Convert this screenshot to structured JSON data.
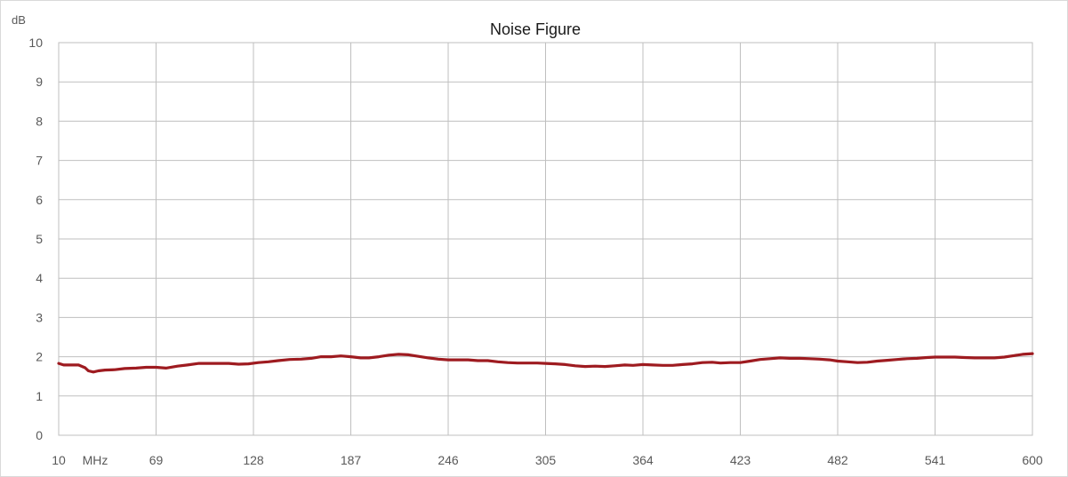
{
  "chart_data": {
    "type": "line",
    "title": "Noise Figure",
    "ylabel": "dB",
    "xlabel": "MHz",
    "xlim": [
      10,
      600
    ],
    "ylim": [
      0,
      10
    ],
    "x_ticks": [
      10,
      69,
      128,
      187,
      246,
      305,
      364,
      423,
      482,
      541,
      600
    ],
    "x_tick_labels": [
      "10",
      "69",
      "128",
      "187",
      "246",
      "305",
      "364",
      "423",
      "482",
      "541",
      "600"
    ],
    "y_ticks": [
      0,
      1,
      2,
      3,
      4,
      5,
      6,
      7,
      8,
      9,
      10
    ],
    "y_tick_labels": [
      "0",
      "1",
      "2",
      "3",
      "4",
      "5",
      "6",
      "7",
      "8",
      "9",
      "10"
    ],
    "grid": true,
    "legend": "none",
    "series": [
      {
        "color": "#9e1b20",
        "x": [
          10,
          13,
          17,
          22,
          26,
          28,
          31,
          34,
          38,
          44,
          50,
          57,
          63,
          69,
          75,
          82,
          88,
          95,
          100,
          107,
          113,
          119,
          125,
          131,
          137,
          143,
          150,
          157,
          163,
          169,
          175,
          181,
          187,
          193,
          198,
          204,
          210,
          216,
          222,
          228,
          234,
          240,
          246,
          252,
          258,
          264,
          270,
          276,
          282,
          288,
          294,
          300,
          305,
          311,
          317,
          323,
          329,
          335,
          341,
          347,
          353,
          358,
          364,
          370,
          376,
          382,
          388,
          394,
          400,
          406,
          411,
          417,
          423,
          429,
          435,
          441,
          447,
          453,
          459,
          465,
          471,
          477,
          482,
          488,
          494,
          500,
          506,
          512,
          518,
          524,
          530,
          536,
          541,
          547,
          553,
          559,
          565,
          571,
          577,
          583,
          589,
          594,
          600
        ],
        "y": [
          1.83,
          1.79,
          1.79,
          1.79,
          1.72,
          1.64,
          1.61,
          1.64,
          1.66,
          1.67,
          1.7,
          1.71,
          1.73,
          1.73,
          1.71,
          1.76,
          1.79,
          1.83,
          1.83,
          1.83,
          1.83,
          1.81,
          1.82,
          1.85,
          1.87,
          1.9,
          1.93,
          1.94,
          1.96,
          2.0,
          2.0,
          2.02,
          2.0,
          1.97,
          1.97,
          2.0,
          2.04,
          2.06,
          2.05,
          2.01,
          1.97,
          1.94,
          1.92,
          1.92,
          1.92,
          1.9,
          1.9,
          1.87,
          1.85,
          1.84,
          1.84,
          1.84,
          1.83,
          1.82,
          1.8,
          1.77,
          1.75,
          1.76,
          1.75,
          1.77,
          1.79,
          1.78,
          1.8,
          1.79,
          1.78,
          1.78,
          1.8,
          1.82,
          1.85,
          1.86,
          1.84,
          1.85,
          1.85,
          1.89,
          1.93,
          1.95,
          1.97,
          1.96,
          1.96,
          1.95,
          1.94,
          1.92,
          1.89,
          1.87,
          1.85,
          1.86,
          1.89,
          1.91,
          1.93,
          1.95,
          1.96,
          1.98,
          1.99,
          1.99,
          1.99,
          1.98,
          1.97,
          1.97,
          1.97,
          1.99,
          2.03,
          2.06,
          2.08
        ]
      }
    ]
  }
}
